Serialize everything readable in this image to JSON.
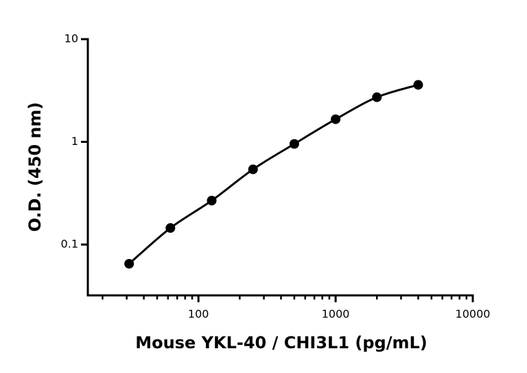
{
  "chart_data": {
    "type": "scatter",
    "x_label": "Mouse YKL-40 / CHI3L1 (pg/mL)",
    "y_label": "O.D. (450 nm)",
    "x": [
      31.25,
      62.5,
      125,
      250,
      500,
      1000,
      2000,
      4000
    ],
    "series": [
      {
        "color": "#000000",
        "values": [
          0.065,
          0.145,
          0.268,
          0.54,
          0.955,
          1.66,
          2.72,
          3.59
        ]
      }
    ],
    "x_log": true,
    "y_log": true,
    "xlim": [
      15.625,
      10000
    ],
    "xticks": [
      100,
      1000,
      10000
    ],
    "xminorticks": [
      20,
      30,
      40,
      50,
      60,
      70,
      80,
      90,
      200,
      300,
      400,
      500,
      600,
      700,
      800,
      900,
      2000,
      3000,
      4000,
      5000,
      6000,
      7000,
      8000,
      9000
    ],
    "ylim": [
      0.032,
      10
    ],
    "yticks": [
      0.1,
      1,
      10
    ],
    "fit_line": true
  }
}
